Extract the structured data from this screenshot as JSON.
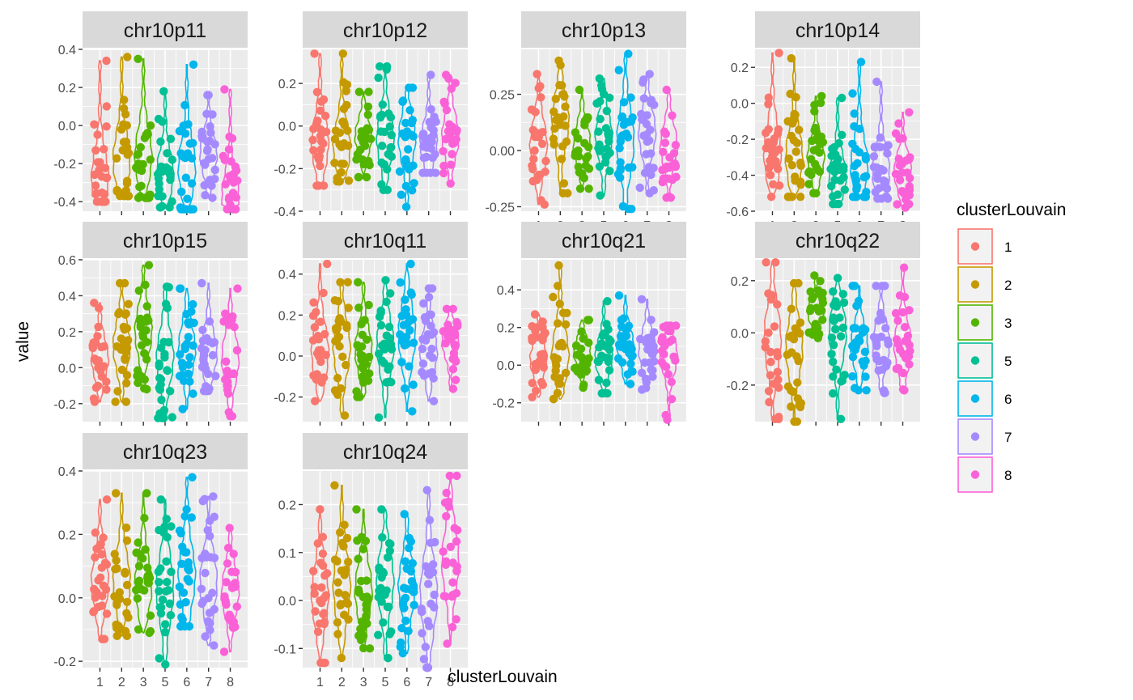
{
  "chart_data": {
    "type": "violin",
    "xlabel": "clusterLouvain",
    "ylabel": "value",
    "clusters": [
      "1",
      "2",
      "3",
      "5",
      "6",
      "7",
      "8"
    ],
    "legend": {
      "title": "clusterLouvain",
      "placement": "right",
      "entries": [
        {
          "label": "1",
          "color": "#F8766D"
        },
        {
          "label": "2",
          "color": "#C49A00"
        },
        {
          "label": "3",
          "color": "#53B400"
        },
        {
          "label": "5",
          "color": "#00C094"
        },
        {
          "label": "6",
          "color": "#00B6EB"
        },
        {
          "label": "7",
          "color": "#A58AFF"
        },
        {
          "label": "8",
          "color": "#FB61D7"
        }
      ]
    },
    "grid": true,
    "panels": [
      {
        "title": "chr10p11",
        "ylim": [
          -0.45,
          0.4
        ],
        "yticks": [
          "0.4",
          "0.2",
          "0.0",
          "-0.2",
          "-0.4"
        ],
        "ytick_values": [
          0.4,
          0.2,
          0.0,
          -0.2,
          -0.4
        ],
        "ranges": [
          [
            -0.4,
            0.34
          ],
          [
            -0.37,
            0.36
          ],
          [
            -0.38,
            0.35
          ],
          [
            -0.43,
            0.18
          ],
          [
            -0.44,
            0.32
          ],
          [
            -0.38,
            0.16
          ],
          [
            -0.44,
            0.19
          ]
        ],
        "medians": [
          -0.28,
          -0.18,
          -0.16,
          -0.25,
          -0.22,
          -0.15,
          -0.37
        ]
      },
      {
        "title": "chr10p12",
        "ylim": [
          -0.4,
          0.36
        ],
        "yticks": [
          "0.2",
          "0.0",
          "-0.2",
          "-0.4"
        ],
        "ytick_values": [
          0.2,
          0.0,
          -0.2,
          -0.4
        ],
        "ranges": [
          [
            -0.28,
            0.34
          ],
          [
            -0.26,
            0.34
          ],
          [
            -0.24,
            0.16
          ],
          [
            -0.3,
            0.28
          ],
          [
            -0.38,
            0.18
          ],
          [
            -0.22,
            0.24
          ],
          [
            -0.27,
            0.24
          ]
        ],
        "medians": [
          -0.08,
          -0.1,
          -0.05,
          -0.06,
          -0.06,
          -0.08,
          -0.05
        ]
      },
      {
        "title": "chr10p13",
        "ylim": [
          -0.27,
          0.45
        ],
        "yticks": [
          "0.25",
          "0.00",
          "-0.25"
        ],
        "ytick_values": [
          0.25,
          0.0,
          -0.25
        ],
        "ranges": [
          [
            -0.24,
            0.34
          ],
          [
            -0.19,
            0.4
          ],
          [
            -0.17,
            0.27
          ],
          [
            -0.2,
            0.32
          ],
          [
            -0.26,
            0.43
          ],
          [
            -0.19,
            0.34
          ],
          [
            -0.21,
            0.27
          ]
        ],
        "medians": [
          0.02,
          0.13,
          0.03,
          0.06,
          0.04,
          0.08,
          0.02
        ]
      },
      {
        "title": "chr10p14",
        "ylim": [
          -0.6,
          0.3
        ],
        "yticks": [
          "0.2",
          "0.0",
          "-0.2",
          "-0.4",
          "-0.6"
        ],
        "ytick_values": [
          0.2,
          0.0,
          -0.2,
          -0.4,
          -0.6
        ],
        "ranges": [
          [
            -0.52,
            0.28
          ],
          [
            -0.52,
            0.25
          ],
          [
            -0.5,
            0.04
          ],
          [
            -0.56,
            0.03
          ],
          [
            -0.52,
            0.23
          ],
          [
            -0.53,
            0.12
          ],
          [
            -0.58,
            -0.05
          ]
        ],
        "medians": [
          -0.28,
          -0.3,
          -0.3,
          -0.4,
          -0.35,
          -0.38,
          -0.38
        ]
      },
      {
        "title": "chr10p15",
        "ylim": [
          -0.3,
          0.6
        ],
        "yticks": [
          "0.6",
          "0.4",
          "0.2",
          "0.0",
          "-0.2"
        ],
        "ytick_values": [
          0.6,
          0.4,
          0.2,
          0.0,
          -0.2
        ],
        "ranges": [
          [
            -0.19,
            0.36
          ],
          [
            -0.19,
            0.47
          ],
          [
            -0.12,
            0.57
          ],
          [
            -0.28,
            0.45
          ],
          [
            -0.23,
            0.44
          ],
          [
            -0.13,
            0.47
          ],
          [
            -0.27,
            0.44
          ]
        ],
        "medians": [
          0.05,
          0.12,
          0.2,
          0.06,
          0.1,
          0.08,
          0.05
        ]
      },
      {
        "title": "chr10q11",
        "ylim": [
          -0.32,
          0.47
        ],
        "yticks": [
          "0.4",
          "0.2",
          "0.0",
          "-0.2"
        ],
        "ytick_values": [
          0.4,
          0.2,
          0.0,
          -0.2
        ],
        "ranges": [
          [
            -0.22,
            0.45
          ],
          [
            -0.29,
            0.36
          ],
          [
            -0.2,
            0.36
          ],
          [
            -0.3,
            0.37
          ],
          [
            -0.27,
            0.45
          ],
          [
            -0.22,
            0.33
          ],
          [
            -0.16,
            0.23
          ]
        ],
        "medians": [
          0.02,
          0.04,
          0.03,
          0.05,
          0.1,
          0.02,
          0.07
        ]
      },
      {
        "title": "chr10q21",
        "ylim": [
          -0.3,
          0.56
        ],
        "yticks": [
          "0.4",
          "0.2",
          "0.0",
          "-0.2"
        ],
        "ytick_values": [
          0.4,
          0.2,
          0.0,
          -0.2
        ],
        "ranges": [
          [
            -0.17,
            0.27
          ],
          [
            -0.18,
            0.53
          ],
          [
            -0.12,
            0.24
          ],
          [
            -0.15,
            0.34
          ],
          [
            -0.1,
            0.37
          ],
          [
            -0.13,
            0.35
          ],
          [
            -0.29,
            0.21
          ]
        ],
        "medians": [
          0.03,
          0.05,
          0.07,
          0.04,
          0.1,
          0.08,
          0.05
        ]
      },
      {
        "title": "chr10q22",
        "ylim": [
          -0.34,
          0.28
        ],
        "yticks": [
          "0.2",
          "0.0",
          "-0.2"
        ],
        "ytick_values": [
          0.2,
          0.0,
          -0.2
        ],
        "ranges": [
          [
            -0.33,
            0.27
          ],
          [
            -0.34,
            0.19
          ],
          [
            -0.02,
            0.22
          ],
          [
            -0.33,
            0.21
          ],
          [
            -0.22,
            0.18
          ],
          [
            -0.23,
            0.18
          ],
          [
            -0.22,
            0.25
          ]
        ],
        "medians": [
          -0.02,
          -0.06,
          0.08,
          0.0,
          -0.05,
          -0.04,
          -0.05
        ]
      },
      {
        "title": "chr10q23",
        "ylim": [
          -0.22,
          0.4
        ],
        "yticks": [
          "0.4",
          "0.2",
          "0.0",
          "-0.2"
        ],
        "ytick_values": [
          0.4,
          0.2,
          0.0,
          -0.2
        ],
        "ranges": [
          [
            -0.13,
            0.31
          ],
          [
            -0.12,
            0.33
          ],
          [
            -0.11,
            0.33
          ],
          [
            -0.21,
            0.31
          ],
          [
            -0.09,
            0.38
          ],
          [
            -0.15,
            0.32
          ],
          [
            -0.17,
            0.22
          ]
        ],
        "medians": [
          0.05,
          0.05,
          0.04,
          0.03,
          0.07,
          0.05,
          0.02
        ]
      },
      {
        "title": "chr10q24",
        "ylim": [
          -0.14,
          0.27
        ],
        "yticks": [
          "0.2",
          "0.1",
          "0.0",
          "-0.1"
        ],
        "ytick_values": [
          0.2,
          0.1,
          0.0,
          -0.1
        ],
        "ranges": [
          [
            -0.13,
            0.19
          ],
          [
            -0.12,
            0.24
          ],
          [
            -0.1,
            0.19
          ],
          [
            -0.12,
            0.19
          ],
          [
            -0.11,
            0.18
          ],
          [
            -0.14,
            0.23
          ],
          [
            -0.09,
            0.26
          ]
        ],
        "medians": [
          0.01,
          0.03,
          0.02,
          0.04,
          0.03,
          0.01,
          0.08
        ]
      }
    ]
  }
}
